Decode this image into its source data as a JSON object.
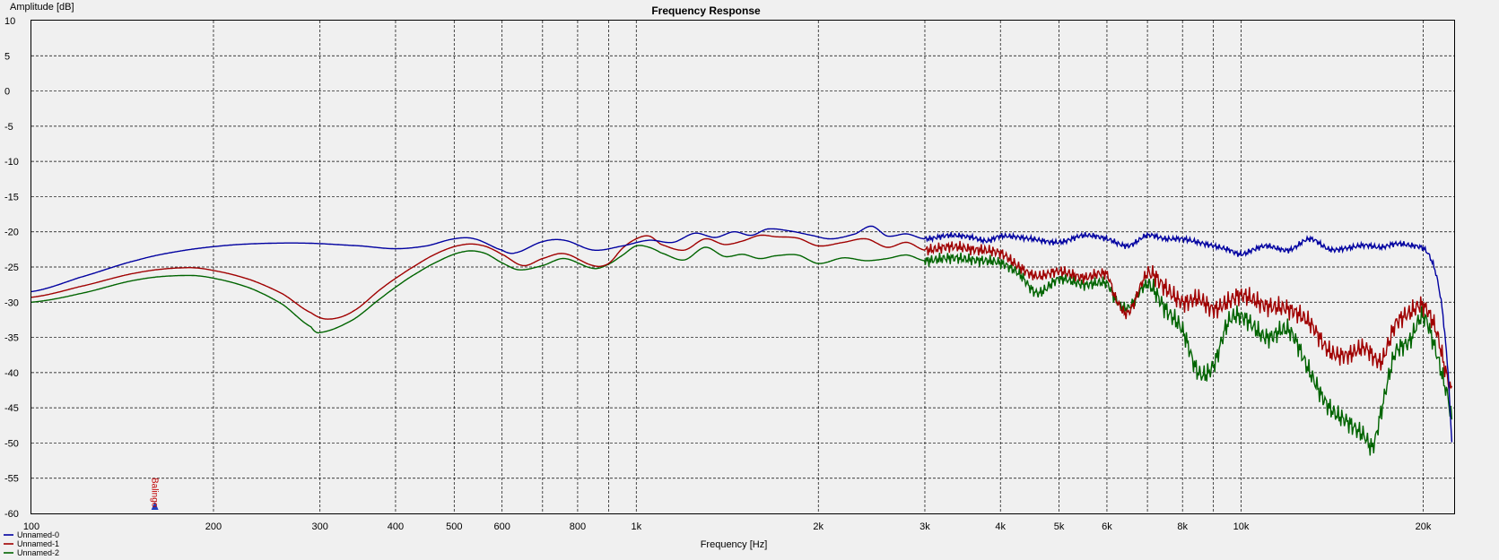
{
  "chart_data": {
    "type": "line",
    "title": "Frequency Response",
    "xlabel": "Frequency [Hz]",
    "ylabel": "Amplitude [dB]",
    "x_scale": "log",
    "xlim": [
      100,
      22500
    ],
    "ylim": [
      -60,
      10
    ],
    "grid": true,
    "legend_position": "bottom-left",
    "x_major_ticks": [
      100,
      200,
      300,
      400,
      500,
      600,
      800,
      1000,
      2000,
      3000,
      4000,
      5000,
      6000,
      8000,
      10000,
      20000
    ],
    "x_tick_labels": [
      "100",
      "200",
      "300",
      "400",
      "500",
      "600",
      "800",
      "1k",
      "2k",
      "3k",
      "4k",
      "5k",
      "6k",
      "8k",
      "10k",
      "20k"
    ],
    "x_minor_grid": [
      700,
      900,
      7000,
      9000
    ],
    "y_ticks": [
      10,
      5,
      0,
      -5,
      -10,
      -15,
      -20,
      -25,
      -30,
      -35,
      -40,
      -45,
      -50,
      -55,
      -60
    ],
    "marker_text": "Balingo",
    "series": [
      {
        "name": "Unnamed-0",
        "color": "#0000a0",
        "points": [
          [
            100,
            -28.5
          ],
          [
            120,
            -26.5
          ],
          [
            150,
            -24
          ],
          [
            180,
            -22.6
          ],
          [
            220,
            -21.8
          ],
          [
            280,
            -21.6
          ],
          [
            350,
            -22
          ],
          [
            400,
            -22.4
          ],
          [
            450,
            -22
          ],
          [
            500,
            -21
          ],
          [
            540,
            -21
          ],
          [
            600,
            -22.6
          ],
          [
            630,
            -23
          ],
          [
            700,
            -21.4
          ],
          [
            760,
            -21.2
          ],
          [
            850,
            -22.6
          ],
          [
            950,
            -22
          ],
          [
            1050,
            -21.2
          ],
          [
            1150,
            -21.5
          ],
          [
            1250,
            -20.2
          ],
          [
            1350,
            -20.8
          ],
          [
            1450,
            -20
          ],
          [
            1550,
            -20.5
          ],
          [
            1650,
            -19.6
          ],
          [
            1800,
            -19.9
          ],
          [
            1950,
            -20.5
          ],
          [
            2100,
            -21
          ],
          [
            2300,
            -20.3
          ],
          [
            2450,
            -19.2
          ],
          [
            2600,
            -20.6
          ],
          [
            2800,
            -20.3
          ],
          [
            3000,
            -21
          ],
          [
            3300,
            -20.5
          ],
          [
            3600,
            -20.8
          ],
          [
            3800,
            -21.3
          ],
          [
            4000,
            -20.6
          ],
          [
            4500,
            -21
          ],
          [
            5000,
            -21.5
          ],
          [
            5500,
            -20.5
          ],
          [
            6000,
            -21
          ],
          [
            6500,
            -22
          ],
          [
            7000,
            -20.5
          ],
          [
            7500,
            -21
          ],
          [
            8000,
            -21
          ],
          [
            8500,
            -21.5
          ],
          [
            9000,
            -22
          ],
          [
            9500,
            -22.5
          ],
          [
            10000,
            -23.2
          ],
          [
            10500,
            -22.5
          ],
          [
            11000,
            -22
          ],
          [
            12000,
            -22.6
          ],
          [
            13000,
            -21
          ],
          [
            14000,
            -22.5
          ],
          [
            15000,
            -22.3
          ],
          [
            16000,
            -21.9
          ],
          [
            17000,
            -22.2
          ],
          [
            18000,
            -21.7
          ],
          [
            19000,
            -21.9
          ],
          [
            20000,
            -22.3
          ],
          [
            20500,
            -23.5
          ],
          [
            21000,
            -26
          ],
          [
            21500,
            -31
          ],
          [
            22000,
            -40
          ],
          [
            22300,
            -49.5
          ]
        ]
      },
      {
        "name": "Unnamed-1",
        "color": "#a00000",
        "points": [
          [
            100,
            -29.3
          ],
          [
            120,
            -27.8
          ],
          [
            150,
            -25.8
          ],
          [
            180,
            -25.1
          ],
          [
            200,
            -25.5
          ],
          [
            230,
            -26.8
          ],
          [
            260,
            -28.8
          ],
          [
            290,
            -31.5
          ],
          [
            310,
            -32.4
          ],
          [
            340,
            -31.3
          ],
          [
            380,
            -28
          ],
          [
            420,
            -25.4
          ],
          [
            470,
            -23
          ],
          [
            520,
            -21.8
          ],
          [
            560,
            -22
          ],
          [
            600,
            -23.2
          ],
          [
            650,
            -24.8
          ],
          [
            700,
            -23.8
          ],
          [
            760,
            -23.1
          ],
          [
            850,
            -24.8
          ],
          [
            900,
            -24.5
          ],
          [
            950,
            -22.3
          ],
          [
            1000,
            -21
          ],
          [
            1050,
            -20.6
          ],
          [
            1100,
            -21.8
          ],
          [
            1200,
            -22.6
          ],
          [
            1300,
            -21
          ],
          [
            1400,
            -21.8
          ],
          [
            1500,
            -21.3
          ],
          [
            1600,
            -20.5
          ],
          [
            1700,
            -20.7
          ],
          [
            1850,
            -20.9
          ],
          [
            2000,
            -22
          ],
          [
            2200,
            -21.5
          ],
          [
            2400,
            -21
          ],
          [
            2600,
            -22.2
          ],
          [
            2800,
            -21.5
          ],
          [
            3000,
            -22.6
          ],
          [
            3300,
            -22.1
          ],
          [
            3600,
            -22.5
          ],
          [
            4000,
            -23
          ],
          [
            4300,
            -25
          ],
          [
            4600,
            -26.3
          ],
          [
            5000,
            -25.6
          ],
          [
            5500,
            -26.5
          ],
          [
            6000,
            -26
          ],
          [
            6200,
            -29.5
          ],
          [
            6500,
            -31.5
          ],
          [
            7000,
            -26
          ],
          [
            7500,
            -28
          ],
          [
            8000,
            -30
          ],
          [
            8500,
            -29.5
          ],
          [
            9000,
            -31
          ],
          [
            9500,
            -30
          ],
          [
            10000,
            -29
          ],
          [
            11000,
            -30.5
          ],
          [
            12000,
            -31
          ],
          [
            13000,
            -33
          ],
          [
            14000,
            -37
          ],
          [
            15000,
            -37.5
          ],
          [
            16000,
            -36.5
          ],
          [
            17000,
            -38.5
          ],
          [
            17500,
            -36
          ],
          [
            18000,
            -33
          ],
          [
            19000,
            -31.5
          ],
          [
            20000,
            -30.5
          ],
          [
            21000,
            -34
          ],
          [
            22000,
            -41
          ],
          [
            22300,
            -42.5
          ]
        ]
      },
      {
        "name": "Unnamed-2",
        "color": "#006400",
        "points": [
          [
            100,
            -30
          ],
          [
            120,
            -28.8
          ],
          [
            150,
            -26.8
          ],
          [
            180,
            -26.2
          ],
          [
            200,
            -26.6
          ],
          [
            230,
            -28
          ],
          [
            260,
            -30.3
          ],
          [
            290,
            -33.5
          ],
          [
            300,
            -34.3
          ],
          [
            340,
            -32.5
          ],
          [
            380,
            -29.3
          ],
          [
            420,
            -26.6
          ],
          [
            470,
            -24.2
          ],
          [
            520,
            -22.8
          ],
          [
            560,
            -23
          ],
          [
            600,
            -24.4
          ],
          [
            640,
            -25.4
          ],
          [
            700,
            -24.8
          ],
          [
            760,
            -23.8
          ],
          [
            850,
            -25.2
          ],
          [
            900,
            -24.6
          ],
          [
            950,
            -23.3
          ],
          [
            1000,
            -22
          ],
          [
            1050,
            -22.2
          ],
          [
            1100,
            -23
          ],
          [
            1200,
            -24
          ],
          [
            1300,
            -22.2
          ],
          [
            1400,
            -23.5
          ],
          [
            1500,
            -23.2
          ],
          [
            1600,
            -23.8
          ],
          [
            1700,
            -23.4
          ],
          [
            1850,
            -23.3
          ],
          [
            2000,
            -24.5
          ],
          [
            2200,
            -23.7
          ],
          [
            2400,
            -24.1
          ],
          [
            2600,
            -23.8
          ],
          [
            2800,
            -23.3
          ],
          [
            3000,
            -24.1
          ],
          [
            3300,
            -23.7
          ],
          [
            3600,
            -24
          ],
          [
            4000,
            -24.4
          ],
          [
            4300,
            -26
          ],
          [
            4600,
            -28.7
          ],
          [
            5000,
            -26.7
          ],
          [
            5500,
            -27.5
          ],
          [
            6000,
            -27.3
          ],
          [
            6200,
            -29.7
          ],
          [
            6500,
            -30.8
          ],
          [
            7000,
            -27.5
          ],
          [
            7500,
            -31
          ],
          [
            8000,
            -34
          ],
          [
            8500,
            -40
          ],
          [
            9000,
            -39
          ],
          [
            9500,
            -33
          ],
          [
            10000,
            -32
          ],
          [
            11000,
            -35
          ],
          [
            12000,
            -34
          ],
          [
            13000,
            -40
          ],
          [
            14000,
            -45
          ],
          [
            15000,
            -47
          ],
          [
            16000,
            -49
          ],
          [
            16500,
            -50.5
          ],
          [
            17000,
            -46
          ],
          [
            17500,
            -41
          ],
          [
            18000,
            -37
          ],
          [
            19000,
            -35.5
          ],
          [
            20000,
            -32
          ],
          [
            21000,
            -37
          ],
          [
            22000,
            -43.5
          ],
          [
            22300,
            -46.5
          ]
        ]
      }
    ]
  }
}
